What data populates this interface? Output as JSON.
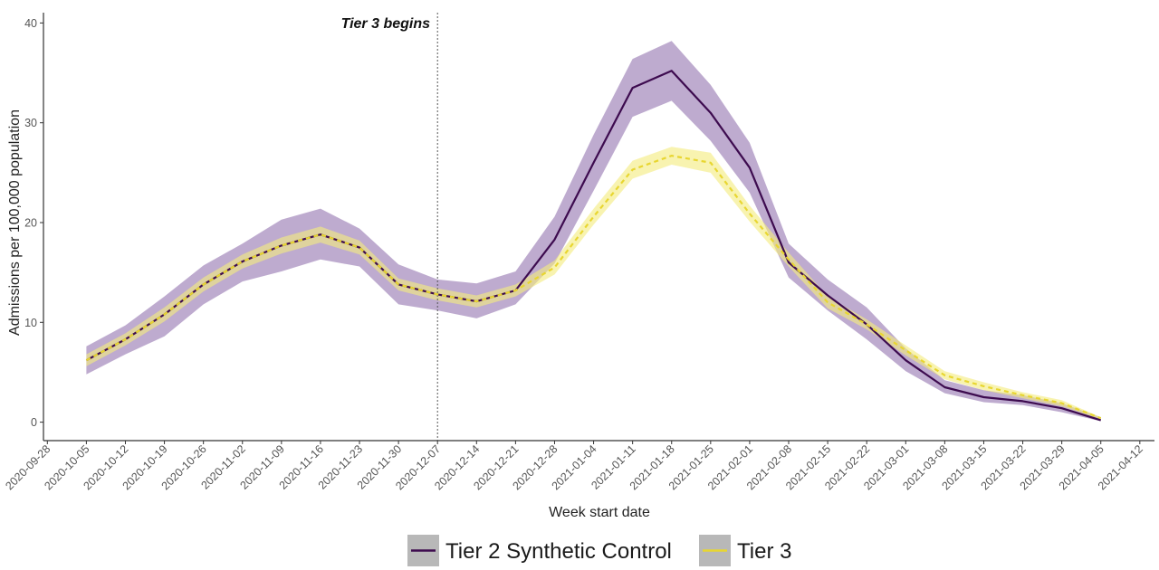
{
  "chart_data": {
    "type": "line",
    "xlabel": "Week start date",
    "ylabel": "Admissions per 100,000 population",
    "ylim": [
      0,
      40
    ],
    "yticks": [
      0,
      10,
      20,
      30,
      40
    ],
    "x_tick_labels": [
      "2020-09-28",
      "2020-10-05",
      "2020-10-12",
      "2020-10-19",
      "2020-10-26",
      "2020-11-02",
      "2020-11-09",
      "2020-11-16",
      "2020-11-23",
      "2020-11-30",
      "2020-12-07",
      "2020-12-14",
      "2020-12-21",
      "2020-12-28",
      "2021-01-04",
      "2021-01-11",
      "2021-01-18",
      "2021-01-25",
      "2021-02-01",
      "2021-02-08",
      "2021-02-15",
      "2021-02-22",
      "2021-03-01",
      "2021-03-08",
      "2021-03-15",
      "2021-03-22",
      "2021-03-29",
      "2021-04-05",
      "2021-04-12"
    ],
    "x": [
      "2020-10-05",
      "2020-10-12",
      "2020-10-19",
      "2020-10-26",
      "2020-11-02",
      "2020-11-09",
      "2020-11-16",
      "2020-11-23",
      "2020-11-30",
      "2020-12-07",
      "2020-12-14",
      "2020-12-21",
      "2020-12-28",
      "2021-01-04",
      "2021-01-11",
      "2021-01-18",
      "2021-01-25",
      "2021-02-01",
      "2021-02-08",
      "2021-02-15",
      "2021-02-22",
      "2021-03-01",
      "2021-03-08",
      "2021-03-15",
      "2021-03-22",
      "2021-03-29",
      "2021-04-05"
    ],
    "grid": false,
    "legend_position": "bottom",
    "annotation": {
      "text": "Tier 3 begins",
      "x": "2020-12-07"
    },
    "series": [
      {
        "name": "Tier 2 Synthetic Control",
        "color": "#3d0b4f",
        "band_color": "#a58bbd",
        "line_style": "solid",
        "values": [
          6.2,
          8.3,
          10.8,
          13.8,
          16.1,
          17.7,
          18.8,
          17.5,
          13.8,
          12.8,
          12.1,
          13.2,
          18.3,
          26.0,
          33.5,
          35.2,
          31.0,
          25.5,
          16.0,
          12.7,
          9.8,
          6.2,
          3.5,
          2.5,
          2.1,
          1.4,
          0.2
        ],
        "lower": [
          4.8,
          6.8,
          8.6,
          11.8,
          14.1,
          15.1,
          16.3,
          15.6,
          11.8,
          11.2,
          10.4,
          11.8,
          15.9,
          23.2,
          30.6,
          32.2,
          28.2,
          23.0,
          14.5,
          11.2,
          8.3,
          5.1,
          2.9,
          2.0,
          1.7,
          1.0,
          0.1
        ],
        "upper": [
          7.6,
          9.7,
          12.6,
          15.7,
          17.9,
          20.3,
          21.4,
          19.4,
          15.8,
          14.3,
          13.9,
          15.1,
          20.6,
          28.8,
          36.4,
          38.2,
          33.8,
          28.0,
          17.9,
          14.3,
          11.5,
          7.4,
          4.2,
          3.2,
          2.7,
          1.9,
          0.5
        ]
      },
      {
        "name": "Tier 3",
        "color": "#e8d630",
        "band_color": "#f4ec7f",
        "line_style": "dashed",
        "values": [
          6.2,
          8.3,
          10.8,
          13.8,
          16.1,
          17.7,
          18.8,
          17.5,
          13.8,
          12.8,
          12.1,
          13.2,
          15.5,
          20.6,
          25.3,
          26.7,
          26.0,
          20.9,
          16.3,
          12.0,
          9.8,
          7.2,
          4.7,
          3.6,
          2.7,
          1.9,
          0.4
        ],
        "lower": [
          5.6,
          7.7,
          10.1,
          13.1,
          15.4,
          16.9,
          18.0,
          16.8,
          13.2,
          12.2,
          11.5,
          12.6,
          14.8,
          19.8,
          24.4,
          25.8,
          25.0,
          20.1,
          15.6,
          11.4,
          9.3,
          6.7,
          4.3,
          3.2,
          2.4,
          1.6,
          0.3
        ],
        "upper": [
          6.8,
          8.9,
          11.5,
          14.5,
          16.8,
          18.5,
          19.6,
          18.2,
          14.4,
          13.4,
          12.7,
          13.8,
          16.2,
          21.4,
          26.2,
          27.6,
          27.0,
          21.7,
          17.0,
          12.6,
          10.3,
          7.7,
          5.1,
          4.0,
          3.0,
          2.2,
          0.5
        ]
      }
    ]
  }
}
